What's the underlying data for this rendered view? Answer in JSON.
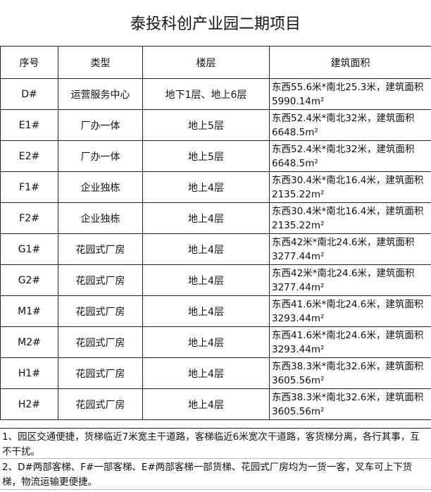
{
  "title": "泰投科创产业园二期项目",
  "headers": [
    "序号",
    "类型",
    "楼层",
    "建筑面积"
  ],
  "rows": [
    {
      "id": "D#",
      "type": "运营服务中心",
      "floors": "地下1层、地上6层",
      "area": "东西55.6米*南北25.3米，建筑面积5990.14m²"
    },
    {
      "id": "E1#",
      "type": "厂办一体",
      "floors": "地上5层",
      "area": "东西52.4米*南北32米，建筑面积6648.5m²"
    },
    {
      "id": "E2#",
      "type": "厂办一体",
      "floors": "地上5层",
      "area": "东西52.4米*南北32米，建筑面积6648.5m²"
    },
    {
      "id": "F1#",
      "type": "企业独栋",
      "floors": "地上4层",
      "area": "东西30.4米*南北16.4米，建筑面积2135.22m²"
    },
    {
      "id": "F2#",
      "type": "企业独栋",
      "floors": "地上4层",
      "area": "东西30.4米*南北16.4米，建筑面积2135.22m²"
    },
    {
      "id": "G1#",
      "type": "花园式厂房",
      "floors": "地上4层",
      "area": "东西42米*南北24.6米，建筑面积3277.44m²"
    },
    {
      "id": "G2#",
      "type": "花园式厂房",
      "floors": "地上4层",
      "area": "东西42米*南北24.6米，建筑面积3277.44m²"
    },
    {
      "id": "M1#",
      "type": "花园式厂房",
      "floors": "地上4层",
      "area": "东西41.6米*南北24.6米，建筑面积3293.44m²"
    },
    {
      "id": "M2#",
      "type": "花园式厂房",
      "floors": "地上4层",
      "area": "东西41.6米*南北24.6米，建筑面积3293.44m²"
    },
    {
      "id": "H1#",
      "type": "花园式厂房",
      "floors": "地上4层",
      "area": "东西38.3米*南北32.6米，建筑面积3605.56m²"
    },
    {
      "id": "H2#",
      "type": "花园式厂房",
      "floors": "地上4层",
      "area": "东西38.3米*南北32.6米，建筑面积3605.56m²"
    }
  ],
  "notes": [
    "1、园区交通便捷，货梯临近7米宽主干道路，客梯临近6米宽次干道路，客货梯分离，各行其事，互不干扰。",
    "2、D#两部客梯、F#一部客梯、E#两部客梯一部货梯、花园式厂房均为一货一客，叉车可上下货梯，物流运输更便捷。"
  ]
}
